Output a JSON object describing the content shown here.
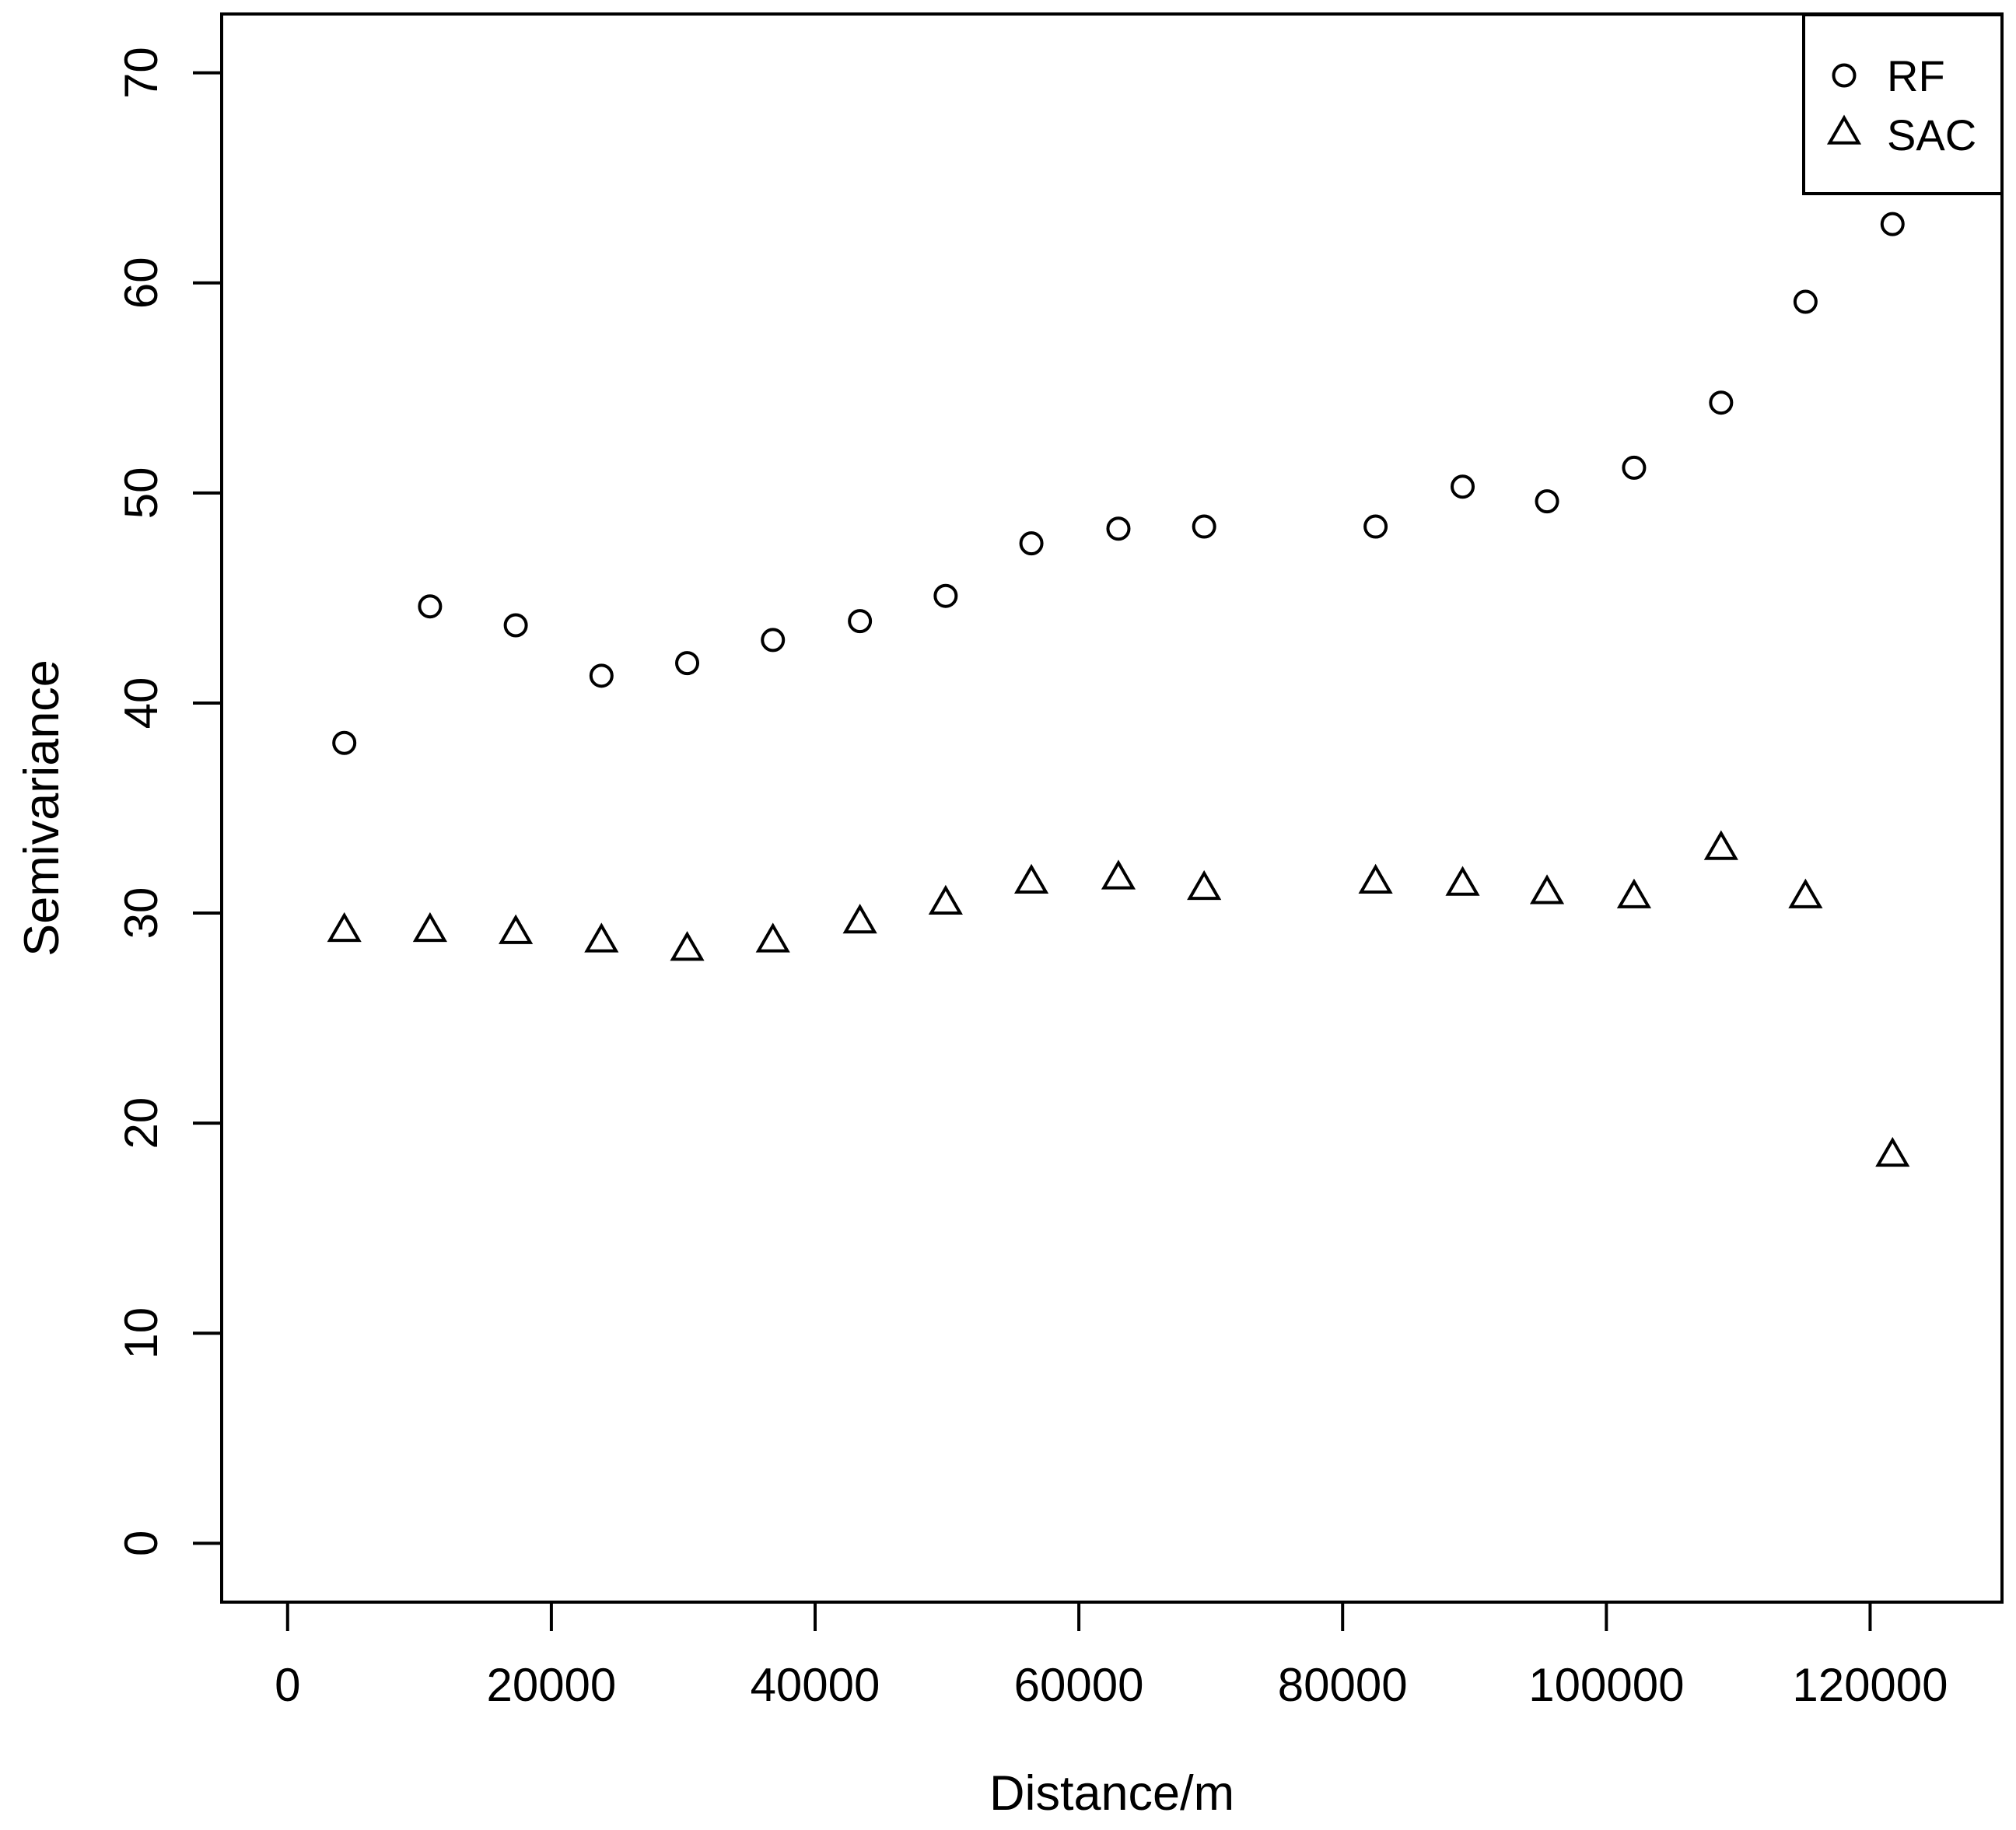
{
  "page": {
    "background": "#ffffff",
    "foreground": "#000000"
  },
  "chart_data": {
    "type": "scatter",
    "title": "",
    "xlabel": "Distance/m",
    "ylabel": "Semivariance",
    "xlim": [
      -5000,
      130000
    ],
    "ylim": [
      -2.8,
      72.8
    ],
    "grid": false,
    "frame": true,
    "x_ticks": {
      "values": [
        0,
        20000,
        40000,
        60000,
        80000,
        100000,
        120000
      ],
      "labels": [
        "0",
        "20000",
        "40000",
        "60000",
        "80000",
        "100000",
        "120000"
      ]
    },
    "y_ticks": {
      "values": [
        0,
        10,
        20,
        30,
        40,
        50,
        60,
        70
      ],
      "labels": [
        "0",
        "10",
        "20",
        "30",
        "40",
        "50",
        "60",
        "70"
      ]
    },
    "series": [
      {
        "name": "RF",
        "marker": "circle",
        "color": "#000000",
        "points": [
          [
            4300,
            38.1
          ],
          [
            10800,
            44.6
          ],
          [
            17300,
            43.7
          ],
          [
            23800,
            41.3
          ],
          [
            30300,
            41.9
          ],
          [
            36800,
            43.0
          ],
          [
            43400,
            43.9
          ],
          [
            49900,
            45.1
          ],
          [
            56400,
            47.6
          ],
          [
            63000,
            48.3
          ],
          [
            69500,
            48.4
          ],
          [
            82500,
            48.4
          ],
          [
            89100,
            50.3
          ],
          [
            95500,
            49.6
          ],
          [
            102100,
            51.2
          ],
          [
            108700,
            54.3
          ],
          [
            115100,
            59.1
          ],
          [
            121700,
            62.8
          ]
        ]
      },
      {
        "name": "SAC",
        "marker": "triangle-up",
        "color": "#000000",
        "points": [
          [
            4300,
            29.1
          ],
          [
            10800,
            29.1
          ],
          [
            17300,
            29.0
          ],
          [
            23800,
            28.6
          ],
          [
            30300,
            28.2
          ],
          [
            36800,
            28.6
          ],
          [
            43400,
            29.5
          ],
          [
            49900,
            30.4
          ],
          [
            56400,
            31.4
          ],
          [
            63000,
            31.6
          ],
          [
            69500,
            31.1
          ],
          [
            82500,
            31.4
          ],
          [
            89100,
            31.3
          ],
          [
            95500,
            30.9
          ],
          [
            102100,
            30.7
          ],
          [
            108700,
            33.0
          ],
          [
            115100,
            30.7
          ],
          [
            121700,
            18.4
          ]
        ]
      }
    ],
    "legend": {
      "position": "top-right",
      "entries": [
        {
          "label": "RF",
          "marker": "circle"
        },
        {
          "label": "SAC",
          "marker": "triangle-up"
        }
      ]
    }
  }
}
